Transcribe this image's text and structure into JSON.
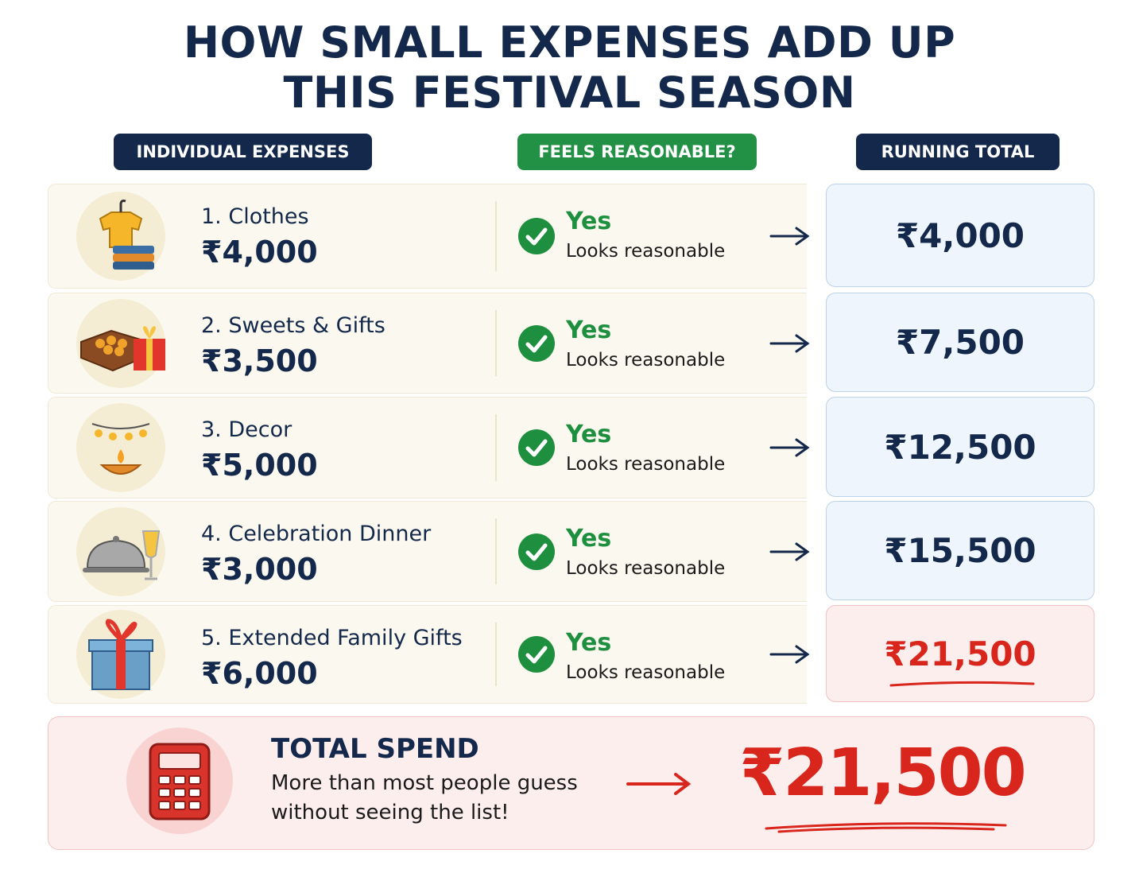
{
  "title": {
    "line1": "HOW SMALL EXPENSES ADD UP",
    "line2": "THIS FESTIVAL SEASON"
  },
  "headers": [
    "INDIVIDUAL EXPENSES",
    "FEELS REASONABLE?",
    "RUNNING TOTAL"
  ],
  "rows": [
    {
      "name": "1. Clothes",
      "amount": "₹4,000",
      "verdict": "Yes",
      "note": "Looks reasonable",
      "running_total": "₹4,000"
    },
    {
      "name": "2. Sweets & Gifts",
      "amount": "₹3,500",
      "verdict": "Yes",
      "note": "Looks reasonable",
      "running_total": "₹7,500"
    },
    {
      "name": "3. Decor",
      "amount": "₹5,000",
      "verdict": "Yes",
      "note": "Looks reasonable",
      "running_total": "₹12,500"
    },
    {
      "name": "4. Celebration Dinner",
      "amount": "₹3,000",
      "verdict": "Yes",
      "note": "Looks reasonable",
      "running_total": "₹15,500"
    },
    {
      "name": "5. Extended Family Gifts",
      "amount": "₹6,000",
      "verdict": "Yes",
      "note": "Looks reasonable",
      "running_total": "₹21,500"
    }
  ],
  "total": {
    "label": "TOTAL SPEND",
    "description_line1": "More than most people guess",
    "description_line2": "without seeing the list!",
    "value": "₹21,500"
  }
}
